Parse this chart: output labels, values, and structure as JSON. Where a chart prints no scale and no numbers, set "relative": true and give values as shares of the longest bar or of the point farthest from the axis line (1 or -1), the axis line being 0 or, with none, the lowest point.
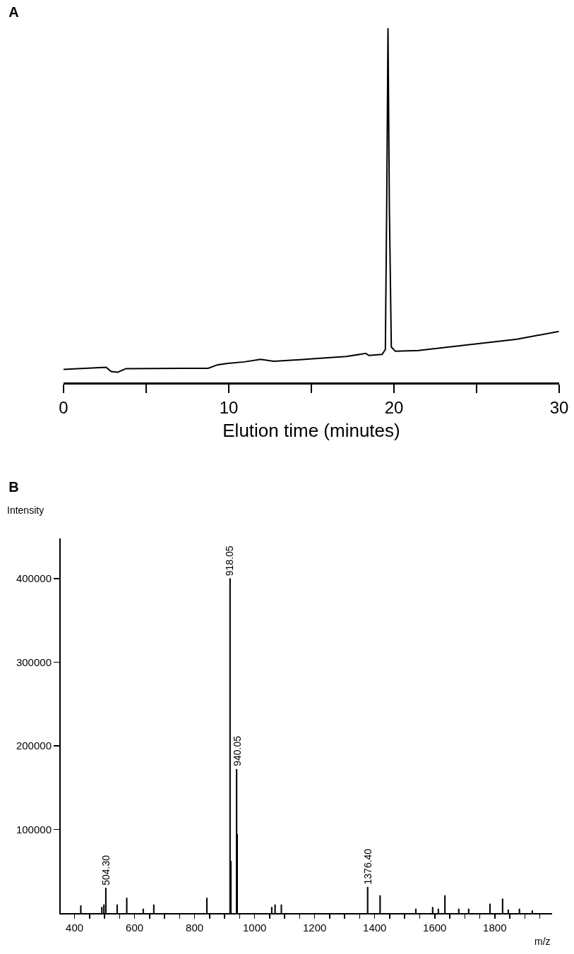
{
  "chart_data": [
    {
      "type": "line",
      "title": "A",
      "xlabel": "Elution time (minutes)",
      "relative": true,
      "tick_labels": "x",
      "xlim": [
        0,
        30
      ],
      "xticks": [
        0,
        {
          "value": 5,
          "label": null
        },
        10,
        {
          "value": 15,
          "label": null
        },
        20,
        {
          "value": 25,
          "label": null
        },
        30
      ],
      "series": [
        {
          "color": "#000000",
          "x": [
            0,
            2.58,
            2.88,
            3.28,
            3.78,
            8.75,
            9.34,
            9.94,
            10.93,
            11.93,
            12.72,
            14.31,
            15.51,
            17.1,
            18.29,
            18.49,
            19.28,
            19.48,
            19.56,
            19.64,
            19.72,
            19.84,
            20.08,
            21.47,
            24.45,
            27.44,
            29.98
          ],
          "values": [
            0.037,
            0.043,
            0.031,
            0.029,
            0.039,
            0.04,
            0.05,
            0.054,
            0.058,
            0.065,
            0.06,
            0.064,
            0.068,
            0.073,
            0.082,
            0.076,
            0.079,
            0.093,
            0.5,
            1.0,
            0.5,
            0.1,
            0.088,
            0.09,
            0.106,
            0.122,
            0.144
          ]
        }
      ]
    },
    {
      "type": "bar",
      "title": "B",
      "ylabel": "Intensity",
      "xlabel": "m/z",
      "xlim": [
        354,
        1991
      ],
      "ylim": [
        0,
        448000
      ],
      "xticks": [
        400,
        {
          "value": 450,
          "label": null
        },
        {
          "value": 500,
          "label": null
        },
        {
          "value": 550,
          "label": null
        },
        600,
        {
          "value": 650,
          "label": null
        },
        {
          "value": 700,
          "label": null
        },
        {
          "value": 750,
          "label": null
        },
        800,
        {
          "value": 850,
          "label": null
        },
        {
          "value": 900,
          "label": null
        },
        {
          "value": 950,
          "label": null
        },
        1000,
        {
          "value": 1050,
          "label": null
        },
        {
          "value": 1100,
          "label": null
        },
        {
          "value": 1150,
          "label": null
        },
        1200,
        {
          "value": 1250,
          "label": null
        },
        {
          "value": 1300,
          "label": null
        },
        {
          "value": 1350,
          "label": null
        },
        1400,
        {
          "value": 1450,
          "label": null
        },
        {
          "value": 1500,
          "label": null
        },
        {
          "value": 1550,
          "label": null
        },
        1600,
        {
          "value": 1650,
          "label": null
        },
        {
          "value": 1700,
          "label": null
        },
        {
          "value": 1750,
          "label": null
        },
        1800,
        {
          "value": 1850,
          "label": null
        },
        {
          "value": 1900,
          "label": null
        },
        {
          "value": 1950,
          "label": null
        }
      ],
      "yticks": [
        100000,
        200000,
        300000,
        400000
      ],
      "annotations": [
        {
          "text": "504.30",
          "x": 504.3,
          "y": 30000
        },
        {
          "text": "918.05",
          "x": 918.05,
          "y": 400000
        },
        {
          "text": "940.05",
          "x": 940.05,
          "y": 172000
        },
        {
          "text": "1376.40",
          "x": 1376.4,
          "y": 31000
        }
      ],
      "series": [
        {
          "color": "#000000",
          "x": [
            421,
            491,
            498,
            504.3,
            542,
            574,
            629,
            664,
            841,
            918.05,
            921,
            940.05,
            942,
            1057,
            1068,
            1089,
            1376.4,
            1418,
            1537,
            1593,
            1612,
            1634,
            1680,
            1713,
            1784,
            1826,
            1845,
            1882,
            1925
          ],
          "values": [
            9000,
            7000,
            10000,
            30000,
            10000,
            18000,
            5000,
            10000,
            18000,
            400000,
            62000,
            172000,
            94000,
            7000,
            10000,
            10000,
            31000,
            21000,
            5000,
            7000,
            5000,
            21000,
            5000,
            5000,
            11000,
            17000,
            4000,
            5000,
            3000
          ]
        }
      ]
    }
  ]
}
